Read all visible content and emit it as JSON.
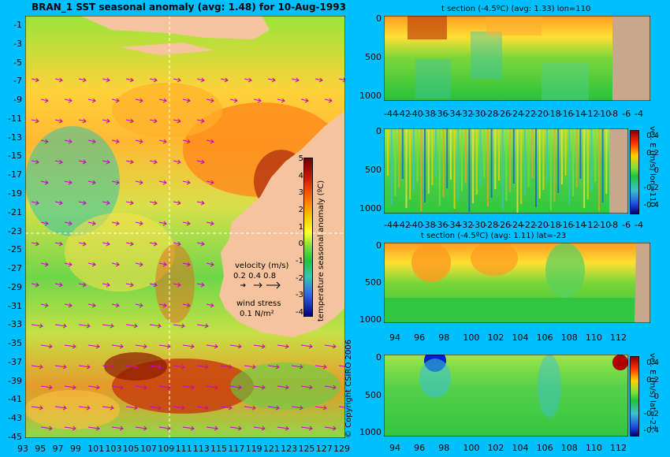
{
  "colors": {
    "background": "#00bfff",
    "land": "#f5c49e",
    "arrow": "#d000d0"
  },
  "chart_data": [
    {
      "type": "heatmap",
      "title": "BRAN_1 SST seasonal anomaly (avg: 1.48) for 10-Aug-1993",
      "x_ticks": [
        "93",
        "95",
        "97",
        "99",
        "101",
        "103",
        "105",
        "107",
        "109",
        "111",
        "113",
        "115",
        "117",
        "119",
        "121",
        "123",
        "125",
        "127",
        "129"
      ],
      "y_ticks": [
        "-1",
        "-3",
        "-5",
        "-7",
        "-9",
        "-11",
        "-13",
        "-15",
        "-17",
        "-19",
        "-21",
        "-23",
        "-25",
        "-27",
        "-29",
        "-31",
        "-33",
        "-35",
        "-37",
        "-39",
        "-41",
        "-43",
        "-45"
      ],
      "colorbar": {
        "label": "temperature seasonal anomaly (ºC)",
        "ticks": [
          "5",
          "4",
          "3",
          "2",
          "1",
          "0",
          "-1",
          "-2",
          "-3",
          "-4"
        ],
        "range": [
          -4,
          5
        ]
      },
      "legend": {
        "velocity_label": "velocity (m/s)",
        "velocity_values": "0.2 0.4 0.8",
        "wind_label": "wind stress",
        "wind_value": "0.1 N/m²"
      }
    },
    {
      "type": "heatmap",
      "title": "t section (-4.5ºC) (avg: 1.33) lon=110",
      "x_ticks": [
        "-44",
        "-42",
        "-40",
        "-38",
        "-36",
        "-34",
        "-32",
        "-30",
        "-28",
        "-26",
        "-24",
        "-22",
        "-20",
        "-18",
        "-16",
        "-14",
        "-12",
        "-10",
        "-8",
        "-6",
        "-4"
      ],
      "y_ticks": [
        "0",
        "500",
        "1000"
      ]
    },
    {
      "type": "heatmap",
      "title": "",
      "x_ticks": [
        "-44",
        "-42",
        "-40",
        "-38",
        "-36",
        "-34",
        "-32",
        "-30",
        "-28",
        "-26",
        "-24",
        "-22",
        "-20",
        "-18",
        "-16",
        "-14",
        "-12",
        "-10",
        "-8",
        "-6",
        "-4"
      ],
      "y_ticks": [
        "0",
        "500",
        "1000"
      ],
      "colorbar": {
        "label": "vel. E (m/s) lon=110",
        "ticks": [
          "0.4",
          "0.2",
          "0",
          "-0.2",
          "-0.4"
        ]
      }
    },
    {
      "type": "heatmap",
      "title": "t section (-4.5ºC) (avg: 1.11) lat=-23",
      "x_ticks": [
        "94",
        "96",
        "98",
        "100",
        "102",
        "104",
        "106",
        "108",
        "110",
        "112"
      ],
      "y_ticks": [
        "0",
        "500",
        "1000"
      ]
    },
    {
      "type": "heatmap",
      "title": "",
      "x_ticks": [
        "94",
        "96",
        "98",
        "100",
        "102",
        "104",
        "106",
        "108",
        "110",
        "112"
      ],
      "y_ticks": [
        "0",
        "500",
        "1000"
      ],
      "colorbar": {
        "label": "vel. E (m/s) lat=-23",
        "ticks": [
          "0.4",
          "0.2",
          "0",
          "-0.2",
          "-0.4"
        ]
      }
    }
  ],
  "copyright": "© Copyright CSIRO 2006"
}
